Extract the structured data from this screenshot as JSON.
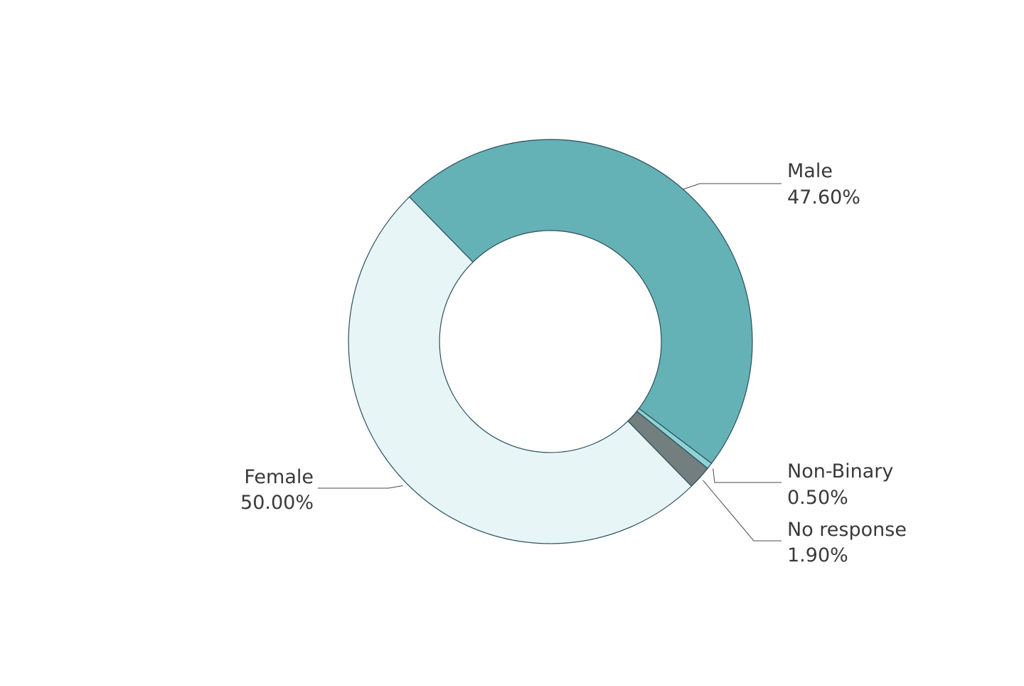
{
  "chart_data": {
    "type": "pie",
    "variant": "donut",
    "slices": [
      {
        "label": "Male",
        "value": 47.6,
        "value_label": "47.60%",
        "color": "#64b1b6"
      },
      {
        "label": "Non-Binary",
        "value": 0.5,
        "value_label": "0.50%",
        "color": "#8fd3d6"
      },
      {
        "label": "No response",
        "value": 1.9,
        "value_label": "1.90%",
        "color": "#737e7e"
      },
      {
        "label": "Female",
        "value": 50.0,
        "value_label": "50.00%",
        "color": "#e7f5f6"
      }
    ],
    "stroke_color": "#2b4f5c",
    "leader_color": "#4a4a4a",
    "legend": "none"
  }
}
